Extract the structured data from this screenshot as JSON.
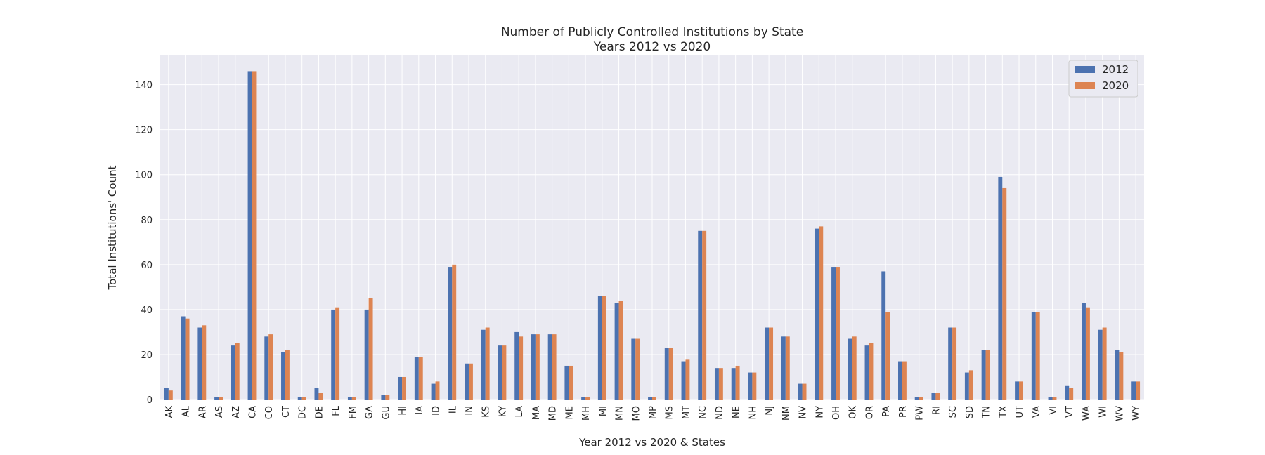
{
  "chart_data": {
    "type": "bar",
    "title": "Number of Publicly Controlled Institutions by State",
    "subtitle": "Years 2012 vs 2020",
    "xlabel": "Year 2012 vs 2020 & States",
    "ylabel": "Total Institutions' Count",
    "ylim": [
      0,
      153
    ],
    "yticks": [
      0,
      20,
      40,
      60,
      80,
      100,
      120,
      140
    ],
    "grid": true,
    "legend_position": "top-right",
    "categories": [
      "AK",
      "AL",
      "AR",
      "AS",
      "AZ",
      "CA",
      "CO",
      "CT",
      "DC",
      "DE",
      "FL",
      "FM",
      "GA",
      "GU",
      "HI",
      "IA",
      "ID",
      "IL",
      "IN",
      "KS",
      "KY",
      "LA",
      "MA",
      "MD",
      "ME",
      "MH",
      "MI",
      "MN",
      "MO",
      "MP",
      "MS",
      "MT",
      "NC",
      "ND",
      "NE",
      "NH",
      "NJ",
      "NM",
      "NV",
      "NY",
      "OH",
      "OK",
      "OR",
      "PA",
      "PR",
      "PW",
      "RI",
      "SC",
      "SD",
      "TN",
      "TX",
      "UT",
      "VA",
      "VI",
      "VT",
      "WA",
      "WI",
      "WV",
      "WY"
    ],
    "series": [
      {
        "name": "2012",
        "color": "#4c72b0",
        "values": [
          5,
          37,
          32,
          1,
          24,
          146,
          28,
          21,
          1,
          5,
          40,
          1,
          40,
          2,
          10,
          19,
          7,
          59,
          16,
          31,
          24,
          30,
          29,
          29,
          15,
          1,
          46,
          43,
          27,
          1,
          23,
          17,
          75,
          14,
          14,
          12,
          32,
          28,
          7,
          76,
          59,
          27,
          24,
          57,
          17,
          1,
          3,
          32,
          12,
          22,
          99,
          8,
          39,
          1,
          6,
          43,
          31,
          22,
          8
        ]
      },
      {
        "name": "2020",
        "color": "#dd8452",
        "values": [
          4,
          36,
          33,
          1,
          25,
          146,
          29,
          22,
          1,
          3,
          41,
          1,
          45,
          2,
          10,
          19,
          8,
          60,
          16,
          32,
          24,
          28,
          29,
          29,
          15,
          1,
          46,
          44,
          27,
          1,
          23,
          18,
          75,
          14,
          15,
          12,
          32,
          28,
          7,
          77,
          59,
          28,
          25,
          39,
          17,
          1,
          3,
          32,
          13,
          22,
          94,
          8,
          39,
          1,
          5,
          41,
          32,
          21,
          8
        ]
      }
    ]
  }
}
